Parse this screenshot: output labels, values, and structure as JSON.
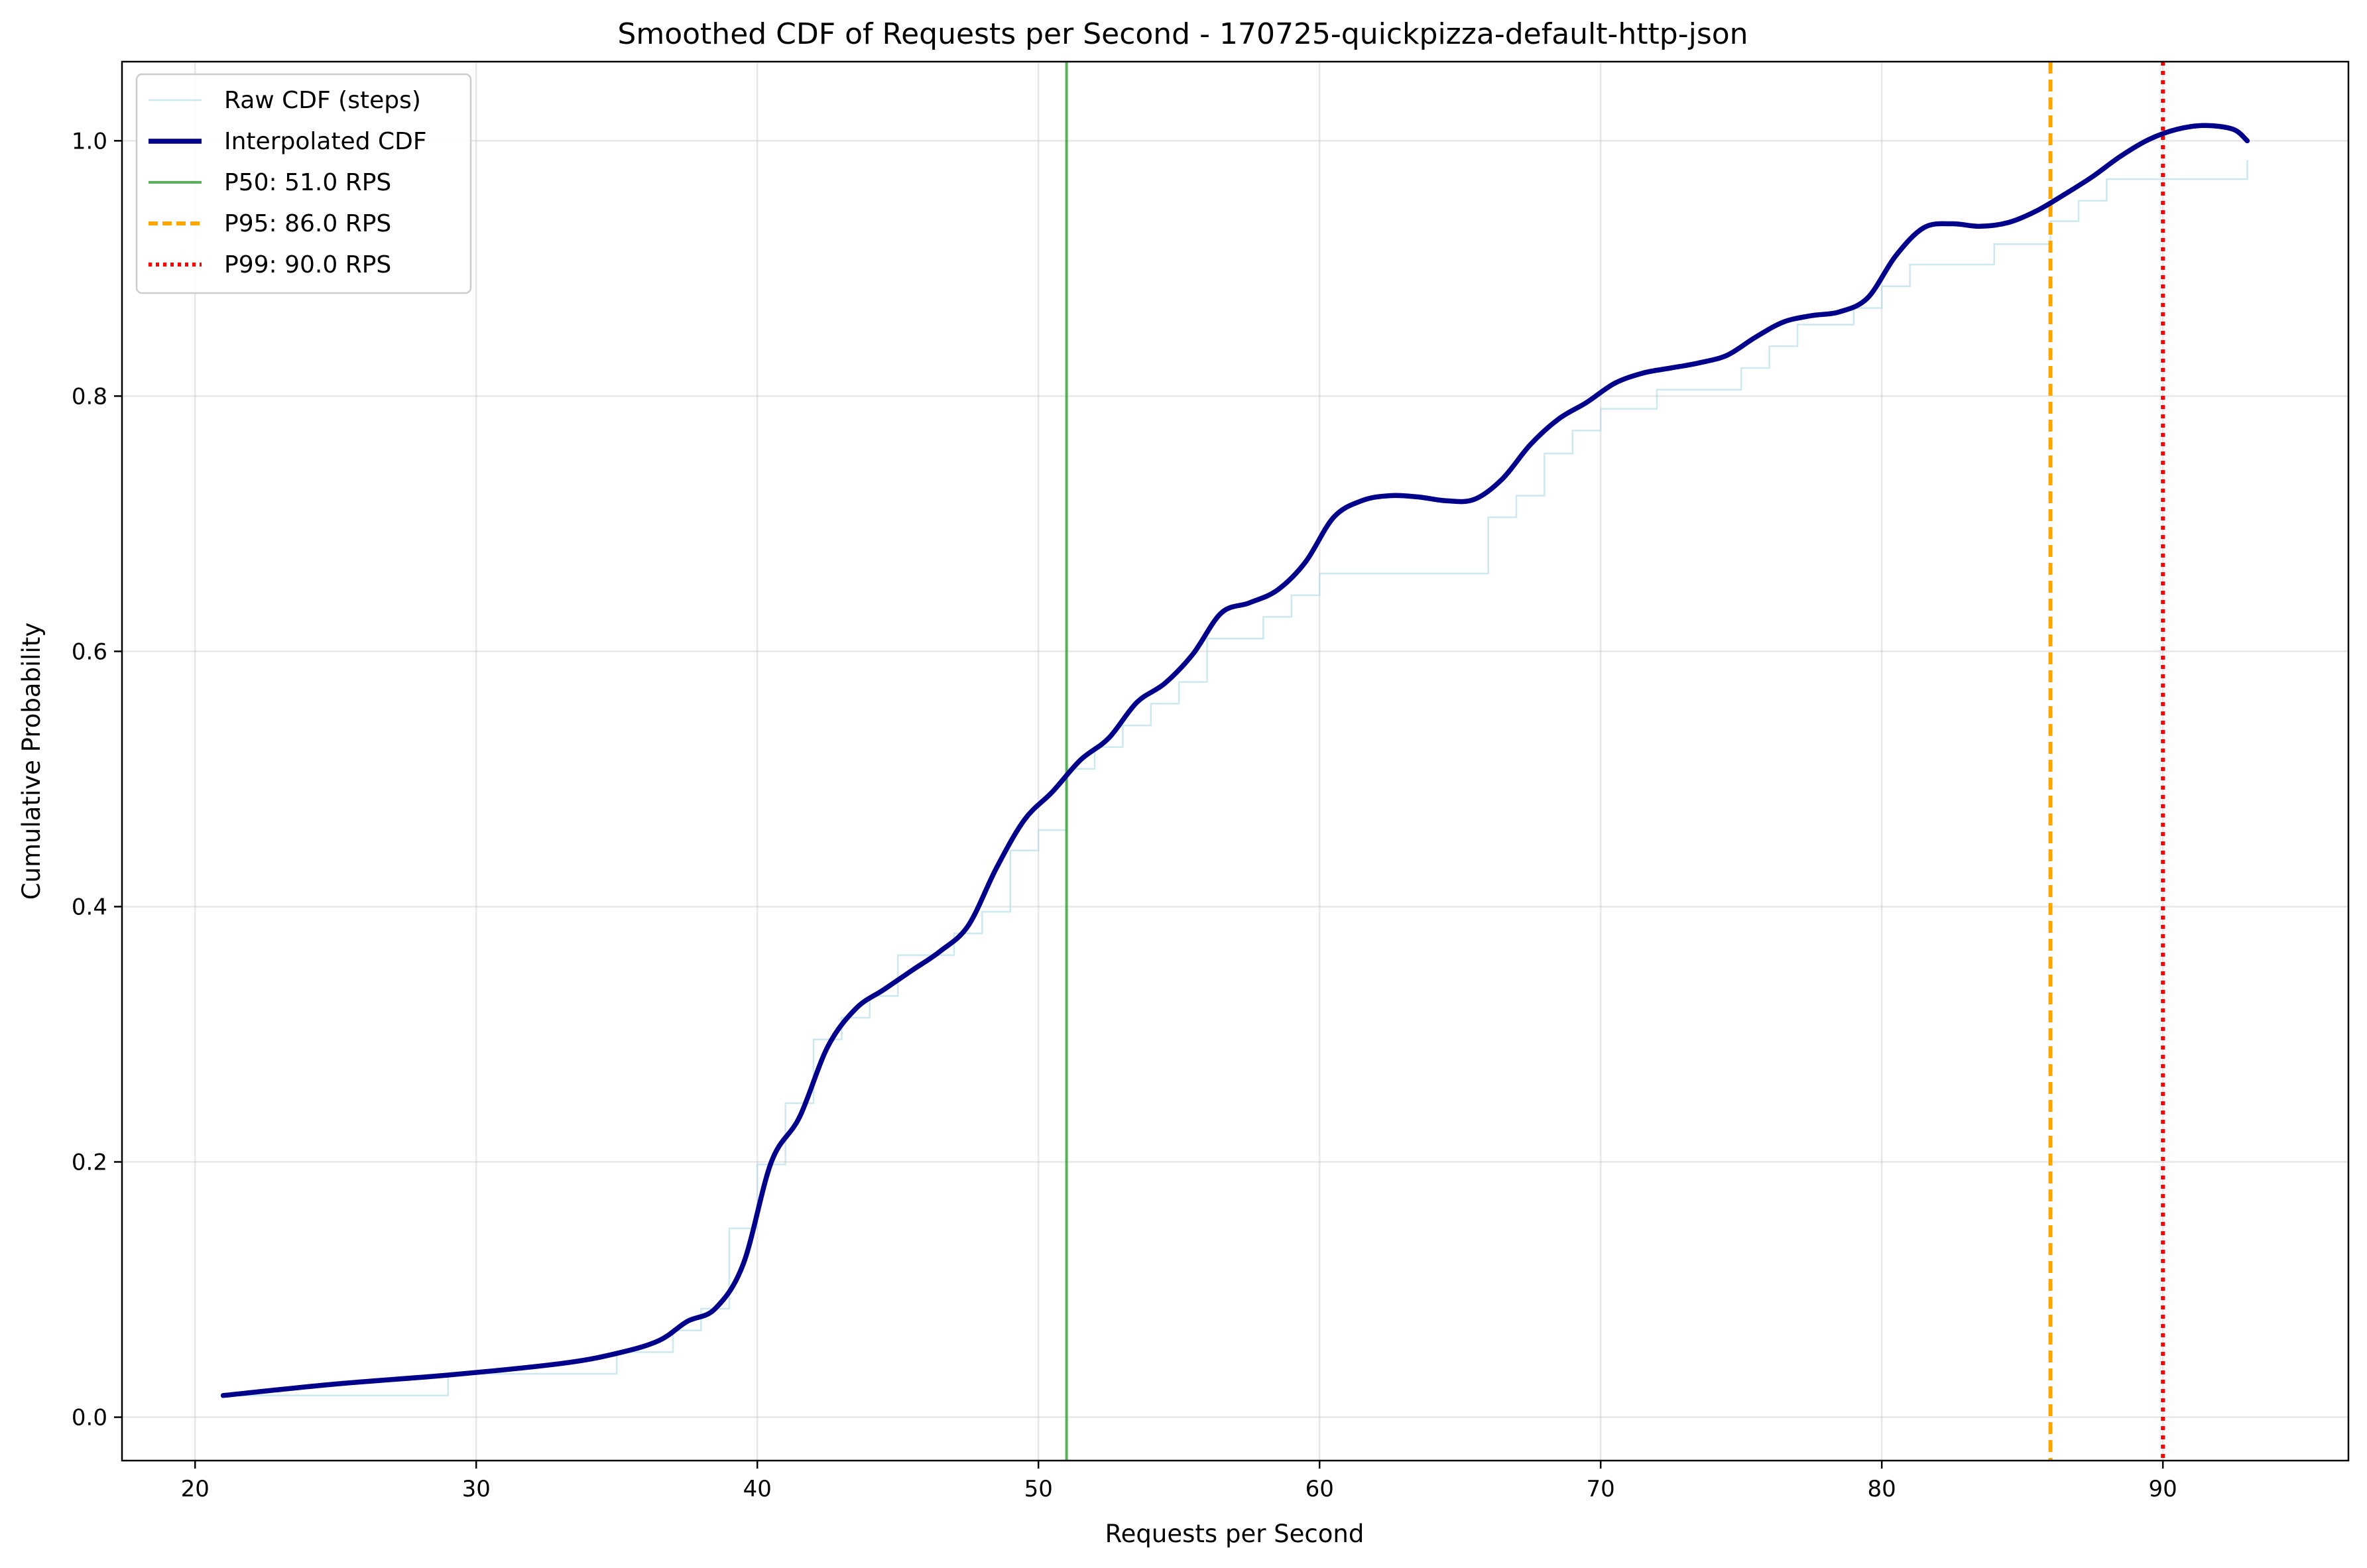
{
  "chart_data": {
    "type": "line",
    "title": "Smoothed CDF of Requests per Second - 170725-quickpizza-default-http-json",
    "xlabel": "Requests per Second",
    "ylabel": "Cumulative Probability",
    "xlim": [
      17.4,
      96.6
    ],
    "ylim": [
      -0.034,
      1.062
    ],
    "xticks": [
      20,
      30,
      40,
      50,
      60,
      70,
      80,
      90
    ],
    "yticks": [
      0.0,
      0.2,
      0.4,
      0.6,
      0.8,
      1.0
    ],
    "grid": true,
    "legend_position": "top-left",
    "colors": {
      "raw": "#add8e6",
      "interpolated": "#00008b",
      "p50": "#2ca02c",
      "p95": "#ffa500",
      "p99": "#ff0000"
    },
    "series": [
      {
        "name": "Raw CDF (steps)",
        "style": "steps",
        "x": [
          21,
          29,
          35,
          37,
          38,
          39,
          40,
          41,
          42,
          43,
          44,
          45,
          47,
          48,
          49,
          50,
          51,
          52,
          53,
          54,
          55,
          56,
          58,
          59,
          60,
          66,
          67,
          68,
          69,
          70,
          72,
          75,
          76,
          77,
          79,
          80,
          81,
          84,
          86,
          87,
          88,
          93
        ],
        "y": [
          0.017,
          0.034,
          0.051,
          0.068,
          0.085,
          0.148,
          0.198,
          0.246,
          0.296,
          0.313,
          0.33,
          0.362,
          0.379,
          0.396,
          0.444,
          0.46,
          0.508,
          0.525,
          0.542,
          0.559,
          0.576,
          0.61,
          0.627,
          0.644,
          0.661,
          0.705,
          0.722,
          0.755,
          0.773,
          0.79,
          0.805,
          0.822,
          0.839,
          0.856,
          0.869,
          0.886,
          0.903,
          0.919,
          0.937,
          0.953,
          0.97,
          0.985
        ]
      },
      {
        "name": "Interpolated CDF",
        "style": "smooth",
        "x": [
          21,
          25,
          29,
          33,
          35,
          36.5,
          37.5,
          38.5,
          39.5,
          40.5,
          41.5,
          42.5,
          43.5,
          44.5,
          45.5,
          46.5,
          47.5,
          48.5,
          49.5,
          50.5,
          51.5,
          52.5,
          53.5,
          54.5,
          55.5,
          56.5,
          57.5,
          58.5,
          59.5,
          60.5,
          61.5,
          62.5,
          63.5,
          64.5,
          65.5,
          66.5,
          67.5,
          68.5,
          69.5,
          70.5,
          71.5,
          72.5,
          73.5,
          74.5,
          75.5,
          76.5,
          77.5,
          78.5,
          79.5,
          80.5,
          81.5,
          82.5,
          83.5,
          84.5,
          85.5,
          86.5,
          87.5,
          88.5,
          89.5,
          90.5,
          91.5,
          92.5,
          93
        ],
        "y": [
          0.017,
          0.026,
          0.033,
          0.042,
          0.05,
          0.06,
          0.075,
          0.085,
          0.12,
          0.2,
          0.235,
          0.29,
          0.32,
          0.335,
          0.35,
          0.365,
          0.385,
          0.43,
          0.468,
          0.49,
          0.515,
          0.532,
          0.56,
          0.575,
          0.598,
          0.63,
          0.638,
          0.648,
          0.67,
          0.705,
          0.718,
          0.722,
          0.721,
          0.718,
          0.719,
          0.735,
          0.762,
          0.782,
          0.795,
          0.81,
          0.818,
          0.822,
          0.826,
          0.832,
          0.846,
          0.858,
          0.863,
          0.866,
          0.877,
          0.91,
          0.932,
          0.935,
          0.933,
          0.936,
          0.945,
          0.958,
          0.972,
          0.988,
          1.001,
          1.009,
          1.012,
          1.009,
          1.0
        ]
      }
    ],
    "reference_lines": [
      {
        "label": "P50: 51.0 RPS",
        "x": 51.0,
        "style": "solid"
      },
      {
        "label": "P95: 86.0 RPS",
        "x": 86.0,
        "style": "dashed"
      },
      {
        "label": "P99: 90.0 RPS",
        "x": 90.0,
        "style": "dotted"
      }
    ]
  }
}
